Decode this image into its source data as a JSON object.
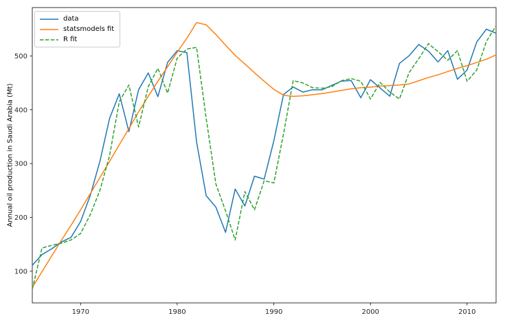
{
  "chart_data": {
    "type": "line",
    "title": "",
    "xlabel": "",
    "ylabel": "Annual oil production in Saudi Arabia (Mt)",
    "grid": false,
    "legend_position": "upper-left",
    "axis_color": "#000000",
    "tick_label_color": "#262626",
    "background_color": "#ffffff",
    "xlim": [
      1965,
      2013
    ],
    "ylim": [
      41,
      590
    ],
    "xticks": [
      1970,
      1980,
      1990,
      2000,
      2010
    ],
    "yticks": [
      100,
      200,
      300,
      400,
      500
    ],
    "x": [
      1965,
      1966,
      1967,
      1968,
      1969,
      1970,
      1971,
      1972,
      1973,
      1974,
      1975,
      1976,
      1977,
      1978,
      1979,
      1980,
      1981,
      1982,
      1983,
      1984,
      1985,
      1986,
      1987,
      1988,
      1989,
      1990,
      1991,
      1992,
      1993,
      1994,
      1995,
      1996,
      1997,
      1998,
      1999,
      2000,
      2001,
      2002,
      2003,
      2004,
      2005,
      2006,
      2007,
      2008,
      2009,
      2010,
      2011,
      2012,
      2013
    ],
    "series": [
      {
        "name": "data",
        "color": "#1f77b4",
        "style": "solid",
        "values": [
          111.0,
          130.8,
          141.3,
          154.2,
          162.7,
          192.2,
          240.8,
          304.2,
          384.0,
          429.7,
          359.3,
          437.3,
          468.4,
          424.4,
          488.0,
          509.8,
          506.3,
          340.2,
          240.3,
          219.0,
          172.1,
          252.6,
          221.1,
          276.5,
          271.1,
          342.6,
          428.4,
          442.3,
          432.8,
          437.2,
          437.2,
          445.4,
          453.2,
          454.4,
          422.4,
          456.0,
          440.4,
          425.2,
          486.2,
          500.4,
          521.3,
          508.9,
          488.9,
          509.9,
          456.7,
          473.8,
          526.0,
          549.8,
          542.3
        ]
      },
      {
        "name": "statsmodels fit",
        "color": "#ff7f0e",
        "style": "solid",
        "values": [
          70,
          99,
          128,
          157,
          185,
          214,
          244,
          274,
          304,
          335,
          365,
          396,
          425,
          453,
          480,
          507,
          533,
          562,
          558,
          540,
          520,
          501,
          485,
          469,
          453,
          438,
          427,
          425,
          426,
          428,
          430,
          433,
          436,
          439,
          441,
          442,
          444,
          445,
          446,
          448,
          454,
          460,
          465,
          471,
          477,
          482,
          488,
          494,
          502
        ]
      },
      {
        "name": "R fit",
        "color": "#2ca02c",
        "style": "dashed",
        "values": [
          66,
          143,
          148,
          152,
          158,
          170,
          205,
          250,
          315,
          415,
          446,
          368,
          443,
          477,
          431,
          496,
          513,
          516,
          384,
          262,
          212,
          158,
          248,
          214,
          268,
          264,
          355,
          454,
          450,
          441,
          440,
          443,
          454,
          458,
          453,
          420,
          451,
          433,
          420,
          469,
          495,
          523,
          508,
          492,
          510,
          453,
          474,
          527,
          556
        ]
      }
    ]
  }
}
